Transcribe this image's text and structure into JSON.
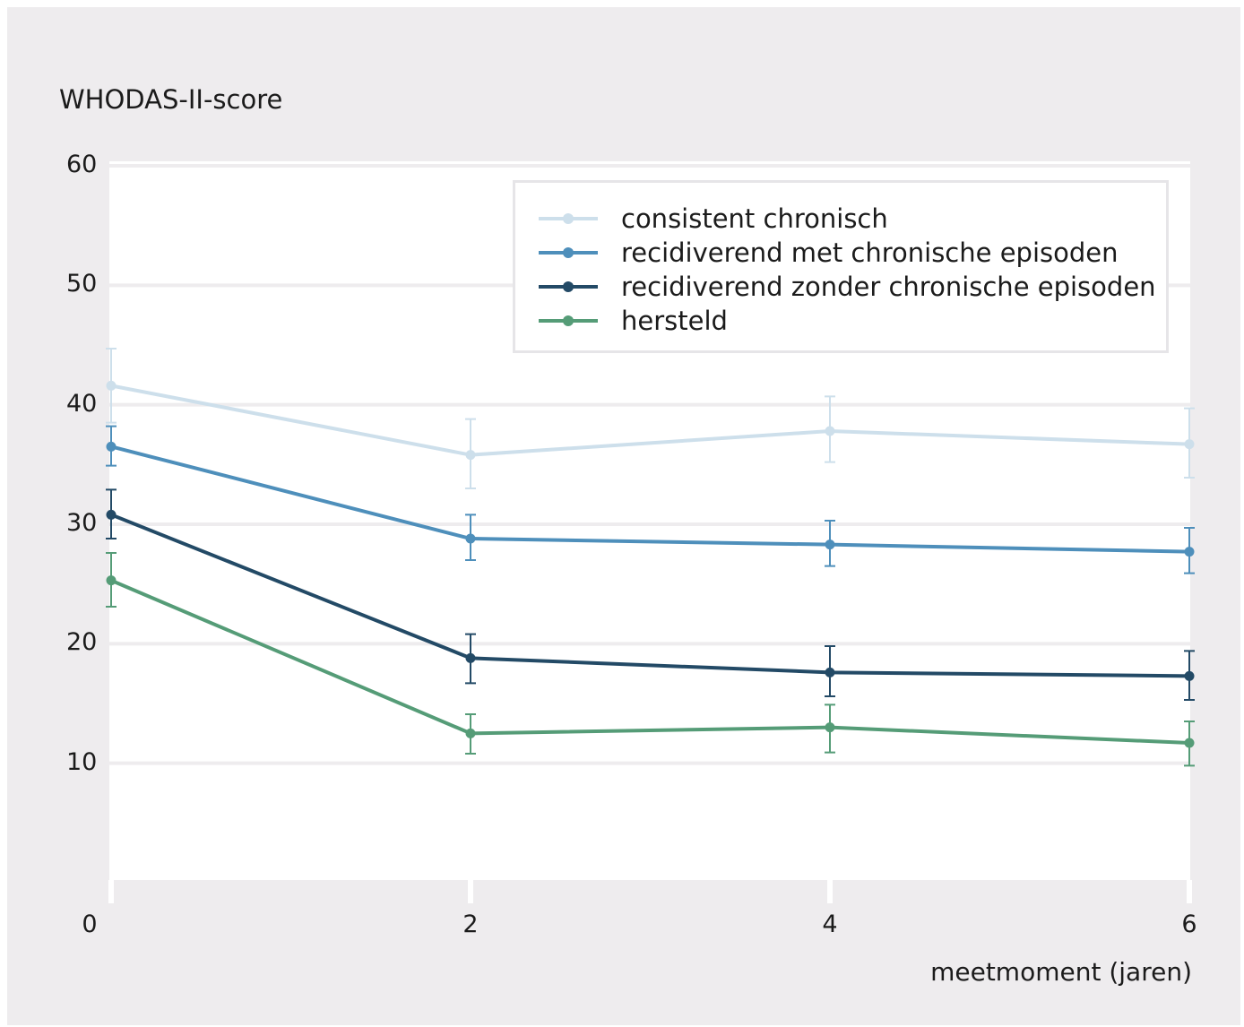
{
  "chart_data": {
    "type": "line",
    "ylabel": "WHODAS-II-score",
    "xlabel": "meetmoment (jaren)",
    "x": [
      0,
      2,
      4,
      6
    ],
    "xticks": [
      "0",
      "2",
      "4",
      "6"
    ],
    "yticks": [
      "10",
      "20",
      "30",
      "40",
      "50",
      "60"
    ],
    "ylim": [
      0,
      60
    ],
    "xlim": [
      0,
      6
    ],
    "grid": "horizontal",
    "legend_position": "top-right",
    "series": [
      {
        "name": "consistent chronisch",
        "color": "#cddfeb",
        "values": [
          41.6,
          35.8,
          37.8,
          36.7
        ],
        "err_low": [
          38.5,
          33.0,
          35.2,
          33.9
        ],
        "err_high": [
          44.7,
          38.8,
          40.7,
          39.7
        ]
      },
      {
        "name": "recidiverend met chronische episoden",
        "color": "#4e8fbb",
        "values": [
          36.5,
          28.8,
          28.3,
          27.7
        ],
        "err_low": [
          34.9,
          27.0,
          26.5,
          25.9
        ],
        "err_high": [
          38.2,
          30.8,
          30.3,
          29.7
        ]
      },
      {
        "name": "recidiverend zonder chronische episoden",
        "color": "#234a66",
        "values": [
          30.8,
          18.8,
          17.6,
          17.3
        ],
        "err_low": [
          28.8,
          16.7,
          15.6,
          15.3
        ],
        "err_high": [
          32.9,
          20.8,
          19.8,
          19.4
        ]
      },
      {
        "name": "hersteld",
        "color": "#559c77",
        "values": [
          25.3,
          12.5,
          13.0,
          11.7
        ],
        "err_low": [
          23.1,
          10.8,
          10.9,
          9.8
        ],
        "err_high": [
          27.6,
          14.1,
          14.9,
          13.5
        ]
      }
    ]
  }
}
